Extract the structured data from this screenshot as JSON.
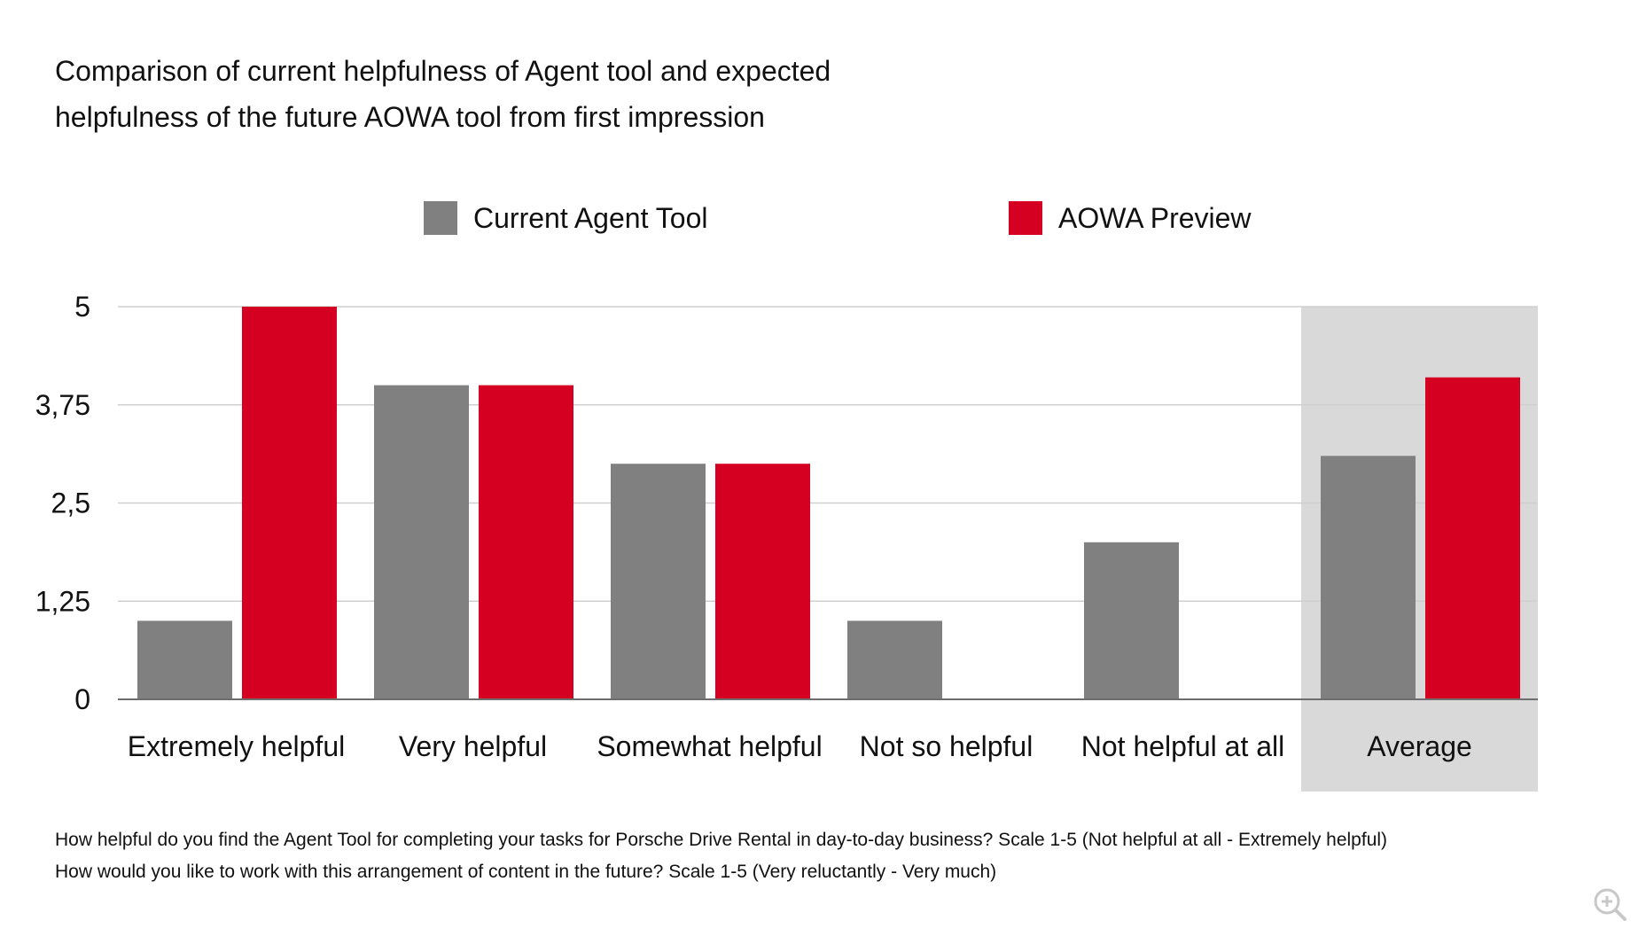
{
  "chart_data": {
    "type": "bar",
    "title": "Comparison of current helpfulness of Agent tool and expected helpfulness of the future AOWA tool from first impression",
    "title_lines": [
      "Comparison of current helpfulness of Agent tool and expected",
      "helpfulness of the future AOWA tool from first impression"
    ],
    "categories": [
      "Extremely helpful",
      "Very helpful",
      "Somewhat helpful",
      "Not so helpful",
      "Not helpful at all",
      "Average"
    ],
    "series": [
      {
        "name": "Current Agent Tool",
        "color": "#808080",
        "values": [
          1,
          4,
          3,
          1,
          2,
          3.1
        ]
      },
      {
        "name": "AOWA Preview",
        "color": "#d50021",
        "values": [
          5,
          4,
          3,
          0,
          0,
          4.1
        ]
      }
    ],
    "yticks": [
      0,
      1.25,
      2.5,
      3.75,
      5
    ],
    "ytick_labels": [
      "0",
      "1,25",
      "2,5",
      "3,75",
      "5"
    ],
    "ylim": [
      0,
      5
    ],
    "xlabel": "",
    "ylabel": "",
    "grid": true,
    "legend_position": "top",
    "highlighted_category": "Average",
    "highlight_color": "#d9d9d9"
  },
  "footnotes": [
    "How helpful do you find the Agent Tool for completing your tasks for Porsche Drive Rental in day-to-day business? Scale 1-5 (Not helpful at all - Extremely helpful)",
    "How would you like to work with this arrangement of content in the future? Scale 1-5 (Very reluctantly - Very much)"
  ],
  "icons": {
    "zoom": "zoom-in-icon"
  }
}
